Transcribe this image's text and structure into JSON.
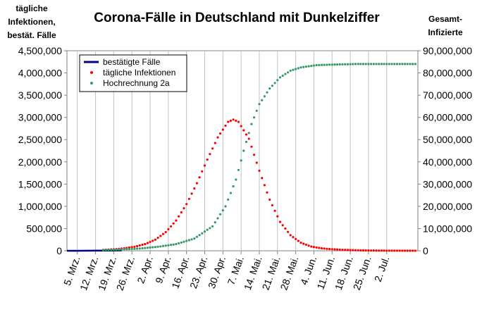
{
  "chart_data": {
    "type": "line",
    "title": "Corona-Fälle in Deutschland mit Dunkelziffer",
    "ylabel_left": [
      "tägliche",
      "Infektionen,",
      "bestät. Fälle"
    ],
    "ylabel_right": [
      "Gesamt-",
      "Infizierte"
    ],
    "x_tick_labels": [
      "5. Mrz.",
      "12. Mrz.",
      "19. Mrz.",
      "26. Mrz.",
      "2. Apr.",
      "9. Apr.",
      "16. Apr.",
      "23. Apr.",
      "30. Apr.",
      "7. Mai.",
      "14. Mai.",
      "21. Mai.",
      "28. Mai.",
      "4. Jun.",
      "11. Jun.",
      "18. Jun.",
      "25. Jun.",
      "2. Jul."
    ],
    "x_range": [
      "2020-03-01",
      "2020-07-14"
    ],
    "ylim_left": [
      0,
      4500000
    ],
    "ylim_right": [
      0,
      90000000
    ],
    "y_ticks_left": [
      "0",
      "500,000",
      "1,000,000",
      "1,500,000",
      "2,000,000",
      "2,500,000",
      "3,000,000",
      "3,500,000",
      "4,000,000",
      "4,500,000"
    ],
    "y_ticks_right": [
      "0",
      "10,000,000",
      "20,000,000",
      "30,000,000",
      "40,000,000",
      "50,000,000",
      "60,000,000",
      "70,000,000",
      "80,000,000",
      "90,000,000"
    ],
    "grid": "vertical",
    "legend_position": "top-left",
    "series": [
      {
        "name": "bestätigte Fälle",
        "axis": "left",
        "style": "line",
        "color": "#000080",
        "points": [
          [
            "2020-03-01",
            100
          ],
          [
            "2020-03-05",
            500
          ],
          [
            "2020-03-09",
            1500
          ],
          [
            "2020-03-12",
            2500
          ],
          [
            "2020-03-15",
            4000
          ],
          [
            "2020-03-18",
            6000
          ],
          [
            "2020-03-22",
            8000
          ]
        ]
      },
      {
        "name": "tägliche Infektionen",
        "axis": "left",
        "style": "dots",
        "color": "#ff0000",
        "points": [
          [
            "2020-03-15",
            20000
          ],
          [
            "2020-03-19",
            35000
          ],
          [
            "2020-03-23",
            55000
          ],
          [
            "2020-03-27",
            90000
          ],
          [
            "2020-03-31",
            150000
          ],
          [
            "2020-04-04",
            250000
          ],
          [
            "2020-04-08",
            420000
          ],
          [
            "2020-04-12",
            680000
          ],
          [
            "2020-04-16",
            1050000
          ],
          [
            "2020-04-20",
            1520000
          ],
          [
            "2020-04-24",
            2050000
          ],
          [
            "2020-04-28",
            2550000
          ],
          [
            "2020-05-02",
            2900000
          ],
          [
            "2020-05-04",
            2950000
          ],
          [
            "2020-05-06",
            2900000
          ],
          [
            "2020-05-10",
            2520000
          ],
          [
            "2020-05-14",
            1800000
          ],
          [
            "2020-05-18",
            1150000
          ],
          [
            "2020-05-22",
            650000
          ],
          [
            "2020-05-26",
            350000
          ],
          [
            "2020-05-30",
            180000
          ],
          [
            "2020-06-03",
            95000
          ],
          [
            "2020-06-07",
            55000
          ],
          [
            "2020-06-11",
            35000
          ],
          [
            "2020-06-15",
            22000
          ],
          [
            "2020-06-19",
            14000
          ],
          [
            "2020-06-23",
            9000
          ],
          [
            "2020-06-27",
            6000
          ],
          [
            "2020-07-01",
            4000
          ],
          [
            "2020-07-05",
            3000
          ],
          [
            "2020-07-09",
            2000
          ],
          [
            "2020-07-13",
            1500
          ]
        ]
      },
      {
        "name": "Hochrechnung 2a",
        "axis": "right",
        "style": "dots",
        "color": "#339966",
        "points": [
          [
            "2020-03-15",
            300000
          ],
          [
            "2020-03-22",
            600000
          ],
          [
            "2020-03-29",
            1000000
          ],
          [
            "2020-04-05",
            1800000
          ],
          [
            "2020-04-12",
            3000000
          ],
          [
            "2020-04-19",
            5500000
          ],
          [
            "2020-04-26",
            11000000
          ],
          [
            "2020-05-01",
            20000000
          ],
          [
            "2020-05-05",
            32000000
          ],
          [
            "2020-05-08",
            45000000
          ],
          [
            "2020-05-11",
            57000000
          ],
          [
            "2020-05-14",
            66000000
          ],
          [
            "2020-05-18",
            73000000
          ],
          [
            "2020-05-22",
            78000000
          ],
          [
            "2020-05-26",
            81000000
          ],
          [
            "2020-05-30",
            82500000
          ],
          [
            "2020-06-05",
            83500000
          ],
          [
            "2020-06-12",
            83800000
          ],
          [
            "2020-06-20",
            84000000
          ],
          [
            "2020-06-30",
            84000000
          ],
          [
            "2020-07-13",
            84000000
          ]
        ]
      }
    ]
  }
}
